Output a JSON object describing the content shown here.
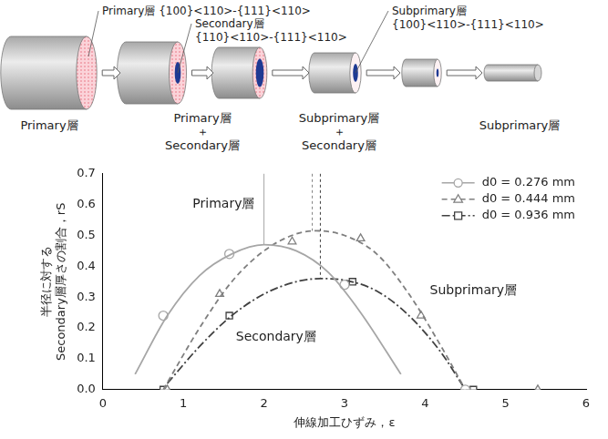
{
  "diagram": {
    "callouts": [
      [
        "Primary層 {100}<110>-{111}<110>"
      ],
      [
        "Secondary層",
        "{110}<110>-{111}<110>"
      ],
      [
        "Subprimary層",
        "{100}<110>-{111}<110>"
      ]
    ],
    "stage_labels": [
      [
        "Primary層"
      ],
      [
        "Primary層",
        "＋",
        "Secondary層"
      ],
      [
        "Subprimary層",
        "＋",
        "Secondary層"
      ],
      [
        "Subprimary層"
      ]
    ]
  },
  "chart_data": {
    "type": "scatter",
    "x_label": "伸線加工ひずみ，ε",
    "y_label": [
      "半径に対する",
      "Secondary層厚さの割合，rS"
    ],
    "xlim": [
      0,
      6
    ],
    "xticks": [
      0,
      1,
      2,
      3,
      4,
      5,
      6
    ],
    "ylim": [
      0,
      0.7
    ],
    "yticks": [
      {
        "value": 0,
        "label": "0.0"
      },
      0.1,
      0.2,
      0.3,
      0.4,
      0.5,
      0.6,
      0.7
    ],
    "grid": false,
    "legend": "upper right",
    "annotations": [
      {
        "text": "Primary層",
        "x": 1.5,
        "y": 0.6
      },
      {
        "text": "Secondary層",
        "x": 2.15,
        "y": 0.17
      },
      {
        "text": "Subprimary層",
        "x": 4.6,
        "y": 0.32
      }
    ],
    "series": [
      {
        "name": "d0 = 0.276 mm",
        "color": "#a6a6a6",
        "marker": "circle",
        "line_style": "solid",
        "x": [
          0.75,
          1.57,
          3.0,
          4.5
        ],
        "values": [
          0.24,
          0.44,
          0.34,
          0.0
        ],
        "curve_x": [
          0.4,
          0.8,
          1.2,
          1.6,
          2.0,
          2.4,
          2.8,
          3.2,
          3.7
        ],
        "curve_values": [
          0.05,
          0.24,
          0.37,
          0.44,
          0.47,
          0.45,
          0.38,
          0.25,
          0.05
        ],
        "peak_strain": 2.0
      },
      {
        "name": "d0 = 0.444 mm",
        "color": "#7f7f7f",
        "marker": "triangle",
        "line_style": "dashed",
        "x": [
          0.8,
          1.45,
          2.35,
          3.2,
          3.95,
          5.4
        ],
        "values": [
          0.0,
          0.31,
          0.48,
          0.49,
          0.24,
          0.0
        ],
        "curve_x": [
          0.75,
          1.2,
          1.6,
          2.0,
          2.4,
          2.65,
          3.0,
          3.4,
          3.8,
          4.2,
          4.5
        ],
        "curve_values": [
          0.0,
          0.2,
          0.35,
          0.45,
          0.505,
          0.515,
          0.5,
          0.44,
          0.31,
          0.14,
          0.0
        ],
        "peak_strain": 2.6
      },
      {
        "name": "d0 = 0.936 mm",
        "color": "#404040",
        "marker": "square",
        "line_style": "dashdot",
        "x": [
          0.75,
          1.57,
          3.1,
          4.6
        ],
        "values": [
          0.0,
          0.24,
          0.35,
          0.0
        ],
        "curve_x": [
          0.8,
          1.2,
          1.6,
          2.0,
          2.4,
          2.7,
          3.0,
          3.4,
          3.8,
          4.2,
          4.5
        ],
        "curve_values": [
          0.02,
          0.14,
          0.24,
          0.31,
          0.35,
          0.36,
          0.355,
          0.32,
          0.24,
          0.12,
          0.0
        ],
        "peak_strain": 2.7
      }
    ]
  }
}
